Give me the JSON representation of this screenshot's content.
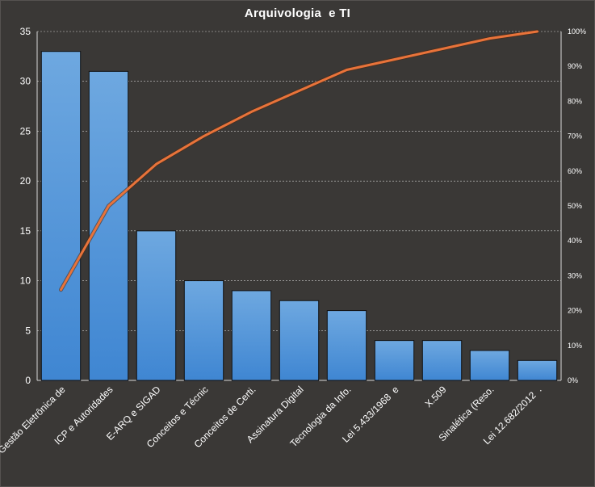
{
  "chart_data": {
    "type": "bar",
    "title": "Arquivologia  e TI",
    "xlabel": "",
    "ylabel": "",
    "categories": [
      "Gestão Eletrônica de",
      "ICP e Autoridades",
      "E-ARQ e SIGAD",
      "Conceitos e Técnic",
      "Conceitos de Certi.",
      "Assinatura Digital",
      "Tecnologia da Info.",
      "Lei 5.433/1968  e",
      "X.509",
      "Sinalética (Reso.",
      "Lei 12.682/2012  ."
    ],
    "series": [
      {
        "type": "bar",
        "values": [
          33,
          31,
          15,
          10,
          9,
          8,
          7,
          4,
          4,
          3,
          2
        ]
      },
      {
        "type": "line",
        "axis": "secondary",
        "values": [
          26,
          50,
          62,
          70,
          77,
          83,
          89,
          92,
          95,
          98,
          100
        ]
      }
    ],
    "ylim": [
      0,
      35
    ],
    "yticks": [
      0,
      5,
      10,
      15,
      20,
      25,
      30,
      35
    ],
    "y2lim": [
      0,
      100
    ],
    "y2ticks": [
      "0%",
      "10%",
      "20%",
      "30%",
      "40%",
      "50%",
      "60%",
      "70%",
      "80%",
      "90%",
      "100%"
    ],
    "grid": true,
    "legend": "none",
    "colors": {
      "background": "#3a3836",
      "bar": "#4a8fd6",
      "line": "#e8733a",
      "grid": "#cfcfcf",
      "text": "#ffffff"
    }
  }
}
